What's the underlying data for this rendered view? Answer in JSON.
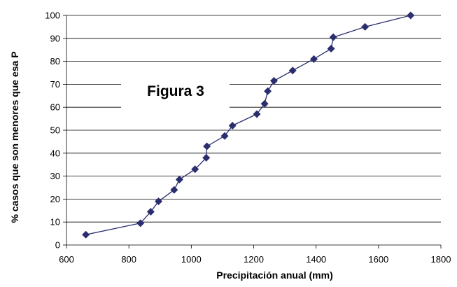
{
  "chart_data": {
    "type": "scatter",
    "title": "",
    "annotation": "Figura 3",
    "xlabel": "Precipitación anual (mm)",
    "ylabel": "% casos que son menores que esa P",
    "xlim": [
      600,
      1800
    ],
    "ylim": [
      0,
      100
    ],
    "xticks": [
      600,
      800,
      1000,
      1200,
      1400,
      1600,
      1800
    ],
    "yticks": [
      0,
      10,
      20,
      30,
      40,
      50,
      60,
      70,
      80,
      90,
      100
    ],
    "grid": "horizontal",
    "marker_color": "#2b2e6e",
    "line_color": "#2b2e6e",
    "series": [
      {
        "x": [
          662,
          837,
          870,
          895,
          945,
          962,
          1012,
          1048,
          1050,
          1107,
          1132,
          1210,
          1235,
          1245,
          1265,
          1325,
          1393,
          1448,
          1455,
          1557,
          1703
        ],
        "y": [
          4.5,
          9.5,
          14.5,
          19,
          24,
          28.5,
          33,
          38,
          43,
          47.5,
          52,
          57,
          61.5,
          67,
          71.5,
          76,
          81,
          85.5,
          90.5,
          95,
          100
        ]
      }
    ]
  }
}
